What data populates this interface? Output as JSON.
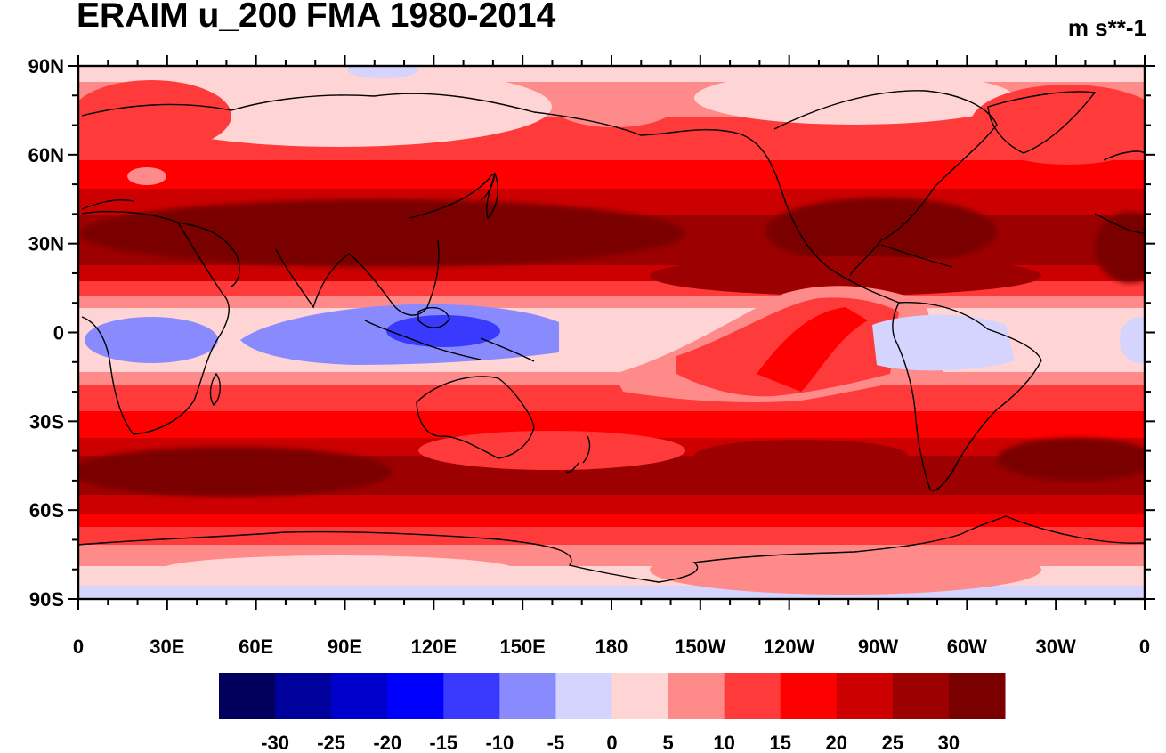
{
  "title": "ERAIM u_200 FMA 1980-2014",
  "units": "m s**-1",
  "map": {
    "type": "contour-map",
    "projection": "cylindrical-equidistant",
    "lon_range": [
      0,
      360
    ],
    "lat_range": [
      -90,
      90
    ],
    "lat_ticks": [
      {
        "value": 90,
        "label": "90N"
      },
      {
        "value": 60,
        "label": "60N"
      },
      {
        "value": 30,
        "label": "30N"
      },
      {
        "value": 0,
        "label": "0"
      },
      {
        "value": -30,
        "label": "30S"
      },
      {
        "value": -60,
        "label": "60S"
      },
      {
        "value": -90,
        "label": "90S"
      }
    ],
    "lon_ticks": [
      {
        "value": 0,
        "label": "0"
      },
      {
        "value": 30,
        "label": "30E"
      },
      {
        "value": 60,
        "label": "60E"
      },
      {
        "value": 90,
        "label": "90E"
      },
      {
        "value": 120,
        "label": "120E"
      },
      {
        "value": 150,
        "label": "150E"
      },
      {
        "value": 180,
        "label": "180"
      },
      {
        "value": 210,
        "label": "150W"
      },
      {
        "value": 240,
        "label": "120W"
      },
      {
        "value": 270,
        "label": "90W"
      },
      {
        "value": 300,
        "label": "60W"
      },
      {
        "value": 330,
        "label": "30W"
      },
      {
        "value": 360,
        "label": "0"
      }
    ]
  },
  "colorbar": {
    "colors": [
      "#00005c",
      "#00009c",
      "#0000cc",
      "#0000ff",
      "#3a3aff",
      "#8a8aff",
      "#d4d4ff",
      "#ffd4d4",
      "#ff8a8a",
      "#ff3a3a",
      "#ff0000",
      "#cc0000",
      "#9c0000",
      "#7a0000"
    ],
    "labels": [
      "-30",
      "-25",
      "-20",
      "-15",
      "-10",
      "-5",
      "0",
      "5",
      "10",
      "15",
      "20",
      "25",
      "30"
    ]
  }
}
